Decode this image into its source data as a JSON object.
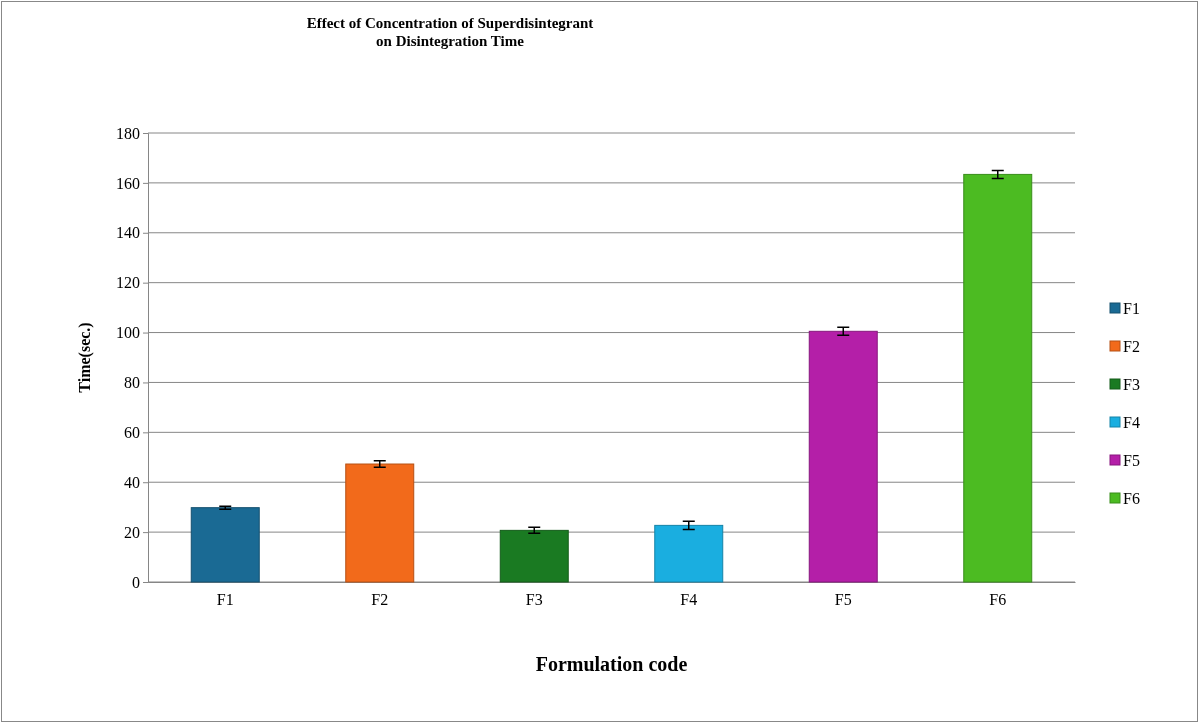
{
  "chart_data": {
    "type": "bar",
    "title": "Effect of Concentration of Superdisintegrant\non Disintegration Time",
    "xlabel": "Formulation code",
    "ylabel": "Time(sec.)",
    "categories": [
      "F1",
      "F2",
      "F3",
      "F4",
      "F5",
      "F6"
    ],
    "series": [
      {
        "name": "F1",
        "color": "#1a6a94",
        "values": [
          29.8,
          null,
          null,
          null,
          null,
          null
        ],
        "errors": [
          0.6,
          null,
          null,
          null,
          null,
          null
        ]
      },
      {
        "name": "F2",
        "color": "#f26a1b",
        "values": [
          null,
          47.3,
          null,
          null,
          null,
          null
        ],
        "errors": [
          null,
          1.3,
          null,
          null,
          null,
          null
        ]
      },
      {
        "name": "F3",
        "color": "#1a7a22",
        "values": [
          null,
          null,
          20.7,
          null,
          null,
          null
        ],
        "errors": [
          null,
          null,
          1.2,
          null,
          null,
          null
        ]
      },
      {
        "name": "F4",
        "color": "#1aaee0",
        "values": [
          null,
          null,
          null,
          22.7,
          null,
          null
        ],
        "errors": [
          null,
          null,
          null,
          1.7,
          null,
          null
        ]
      },
      {
        "name": "F5",
        "color": "#b41fa8",
        "values": [
          null,
          null,
          null,
          null,
          100.5,
          null
        ],
        "errors": [
          null,
          null,
          null,
          null,
          1.6,
          null
        ]
      },
      {
        "name": "F6",
        "color": "#4cbb22",
        "values": [
          null,
          null,
          null,
          null,
          null,
          163.4
        ],
        "errors": [
          null,
          null,
          null,
          null,
          null,
          1.6
        ]
      }
    ],
    "ylim": [
      0,
      180
    ],
    "yticks": [
      0,
      20,
      40,
      60,
      80,
      100,
      120,
      140,
      160,
      180
    ],
    "grid": "y",
    "legend": "right"
  }
}
